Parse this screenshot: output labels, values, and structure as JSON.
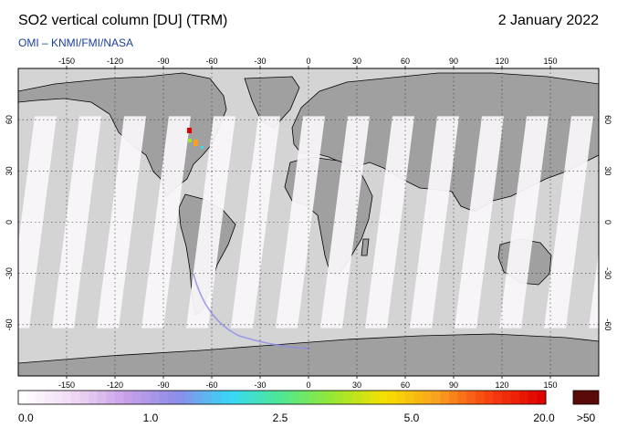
{
  "header": {
    "title": "SO2 vertical column [DU] (TRM)",
    "date": "2 January 2022",
    "credit": "OMI  –  KNMI/FMI/NASA"
  },
  "axes": {
    "lon_ticks": [
      "-150",
      "-120",
      "-90",
      "-60",
      "-30",
      "0",
      "30",
      "60",
      "90",
      "120",
      "150"
    ],
    "lat_ticks": [
      "60",
      "30",
      "0",
      "-30",
      "-60"
    ]
  },
  "colorbar": {
    "labels": [
      "0.0",
      "1.0",
      "2.5",
      "5.0",
      "20.0"
    ],
    "overflow_label": ">50",
    "colors": [
      "#ffffff",
      "#f0d8f4",
      "#c8a0e8",
      "#8c8ce8",
      "#36d8f8",
      "#50e890",
      "#98e830",
      "#f8e000",
      "#f8a020",
      "#f84010",
      "#e00000"
    ],
    "overflow_color": "#5a0a08"
  },
  "colors": {
    "ocean": "#d4d4d4",
    "land": "#a0a0a0",
    "swath": "#fbf8fc",
    "swath_land": "#ffffff"
  }
}
